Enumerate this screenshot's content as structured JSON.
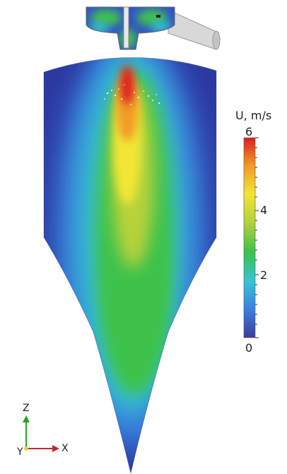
{
  "legend": {
    "title": "U, m/s",
    "ticks": [
      {
        "key": "t6",
        "label": "6",
        "value": 6
      },
      {
        "key": "t4",
        "label": "4",
        "value": 4
      },
      {
        "key": "t2",
        "label": "2",
        "value": 2
      },
      {
        "key": "t0",
        "label": "0",
        "value": 0
      }
    ],
    "range": [
      0,
      6
    ],
    "colors": [
      "#3b3c9b",
      "#3a7fe0",
      "#35c4d4",
      "#3cc24c",
      "#b8d23a",
      "#f2e634",
      "#f39a25",
      "#d92120"
    ]
  },
  "axes": {
    "z": "Z",
    "x": "X",
    "y": "Y",
    "z_color": "#2aa02a",
    "x_color": "#c0282d",
    "y_color": "#e8d22a"
  },
  "colors": {
    "background_field": "#2c39a0",
    "housing": "#cfcfcf"
  }
}
